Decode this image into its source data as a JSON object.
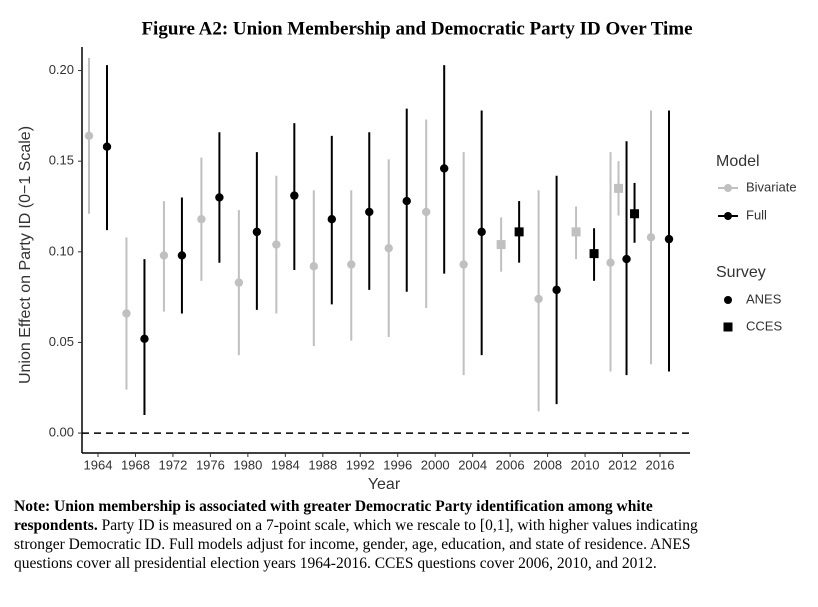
{
  "chart_data": {
    "type": "errorbar",
    "title": "Figure A2: Union Membership and Democratic Party ID Over Time",
    "x_label": "Year",
    "y_label": "Union Effect on Party ID (0−1 Scale)",
    "categories": [
      "1964",
      "1968",
      "1972",
      "1976",
      "1980",
      "1984",
      "1988",
      "1992",
      "1996",
      "2000",
      "2004",
      "2006",
      "2008",
      "2010",
      "2012",
      "2016"
    ],
    "ylim": [
      -0.011,
      0.213
    ],
    "yticks": [
      {
        "value": 0,
        "label": "0.00"
      },
      {
        "value": 0.05,
        "label": "0.05"
      },
      {
        "value": 0.1,
        "label": "0.10"
      },
      {
        "value": 0.15,
        "label": "0.15"
      },
      {
        "value": 0.2,
        "label": "0.20"
      }
    ],
    "reference_line": 0,
    "legend_title_model": "Model",
    "legend_title_survey": "Survey",
    "models": [
      {
        "name": "Bivariate",
        "color": "#c0c0c0"
      },
      {
        "name": "Full",
        "color": "#000000"
      }
    ],
    "surveys": [
      {
        "name": "ANES",
        "shape": "circle"
      },
      {
        "name": "CCES",
        "shape": "square"
      }
    ],
    "series": [
      {
        "model": "Bivariate",
        "survey": "ANES",
        "values": [
          0.164,
          0.066,
          0.098,
          0.118,
          0.083,
          0.104,
          0.092,
          0.093,
          0.102,
          0.122,
          0.093,
          null,
          0.074,
          null,
          0.094,
          0.108
        ],
        "lower": [
          0.121,
          0.024,
          0.067,
          0.084,
          0.043,
          0.066,
          0.048,
          0.051,
          0.053,
          0.069,
          0.032,
          null,
          0.012,
          null,
          0.034,
          0.038
        ],
        "upper": [
          0.207,
          0.108,
          0.128,
          0.152,
          0.123,
          0.142,
          0.134,
          0.134,
          0.151,
          0.173,
          0.155,
          null,
          0.134,
          null,
          0.155,
          0.178
        ]
      },
      {
        "model": "Bivariate",
        "survey": "CCES",
        "values": [
          null,
          null,
          null,
          null,
          null,
          null,
          null,
          null,
          null,
          null,
          null,
          0.104,
          null,
          0.111,
          0.135,
          null
        ],
        "lower": [
          null,
          null,
          null,
          null,
          null,
          null,
          null,
          null,
          null,
          null,
          null,
          0.089,
          null,
          0.096,
          0.12,
          null
        ],
        "upper": [
          null,
          null,
          null,
          null,
          null,
          null,
          null,
          null,
          null,
          null,
          null,
          0.119,
          null,
          0.125,
          0.15,
          null
        ]
      },
      {
        "model": "Full",
        "survey": "ANES",
        "values": [
          0.158,
          0.052,
          0.098,
          0.13,
          0.111,
          0.131,
          0.118,
          0.122,
          0.128,
          0.146,
          0.111,
          null,
          0.079,
          null,
          0.096,
          0.107
        ],
        "lower": [
          0.112,
          0.01,
          0.066,
          0.094,
          0.068,
          0.09,
          0.071,
          0.079,
          0.078,
          0.088,
          0.043,
          null,
          0.016,
          null,
          0.032,
          0.034
        ],
        "upper": [
          0.203,
          0.096,
          0.13,
          0.166,
          0.155,
          0.171,
          0.164,
          0.166,
          0.179,
          0.203,
          0.178,
          null,
          0.142,
          null,
          0.161,
          0.178
        ]
      },
      {
        "model": "Full",
        "survey": "CCES",
        "values": [
          null,
          null,
          null,
          null,
          null,
          null,
          null,
          null,
          null,
          null,
          null,
          0.111,
          null,
          0.099,
          0.121,
          null
        ],
        "lower": [
          null,
          null,
          null,
          null,
          null,
          null,
          null,
          null,
          null,
          null,
          null,
          0.094,
          null,
          0.084,
          0.105,
          null
        ],
        "upper": [
          null,
          null,
          null,
          null,
          null,
          null,
          null,
          null,
          null,
          null,
          null,
          0.128,
          null,
          0.113,
          0.138,
          null
        ]
      }
    ]
  },
  "note": {
    "bold": "Note: Union membership is associated with greater Democratic Party identification among white respondents.",
    "text": "Party ID is measured on a 7-point scale, which we rescale to [0,1], with higher values indicating stronger Democratic ID. Full models adjust for income, gender, age, education, and state of residence. ANES questions cover all presidential election years 1964-2016. CCES questions cover 2006, 2010, and 2012."
  }
}
